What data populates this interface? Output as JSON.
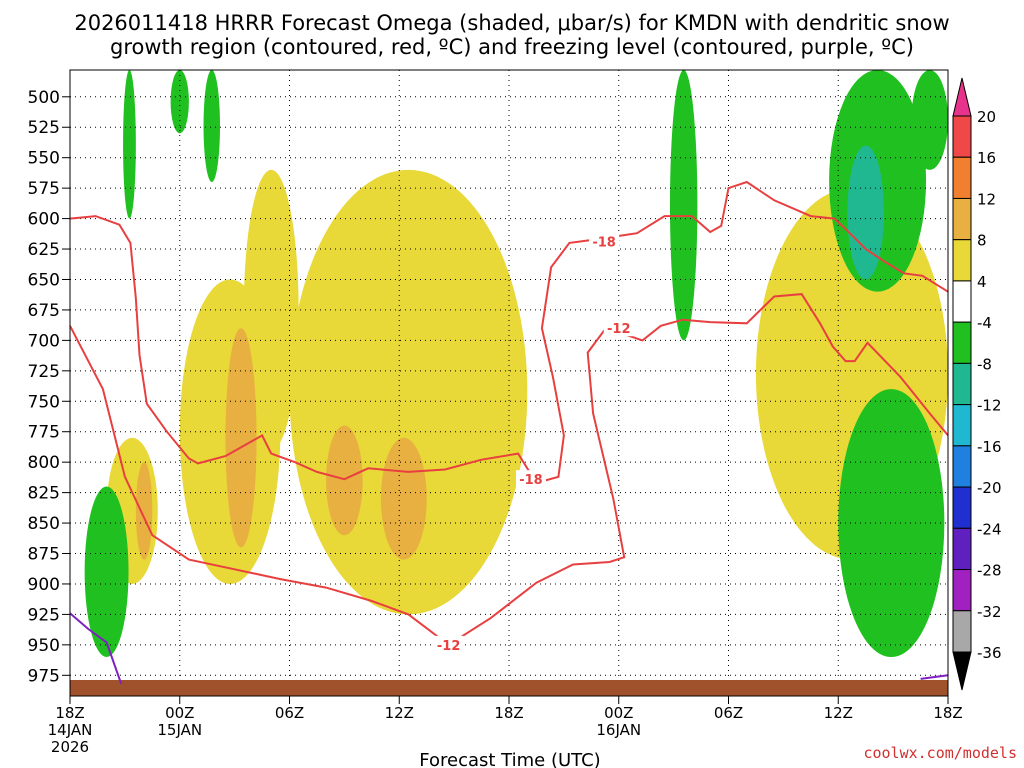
{
  "chart_data": {
    "type": "heatmap",
    "title_line1": "2026011418 HRRR Forecast Omega (shaded, μbar/s) for KMDN with dendritic snow",
    "title_line2": "growth region (contoured, red, ºC) and freezing level (contoured, purple, ºC)",
    "xlabel": "Forecast Time (UTC)",
    "credit": "coolwx.com/models",
    "y_ticks": [
      "500",
      "525",
      "550",
      "575",
      "600",
      "625",
      "650",
      "675",
      "700",
      "725",
      "750",
      "775",
      "800",
      "825",
      "850",
      "875",
      "900",
      "925",
      "950",
      "975"
    ],
    "y_range": [
      478,
      992
    ],
    "x_range_hours": [
      0,
      48
    ],
    "x_ticks": [
      {
        "hour": 0,
        "line1": "18Z",
        "line2": "14JAN",
        "line3": "2026"
      },
      {
        "hour": 6,
        "line1": "00Z",
        "line2": "15JAN",
        "line3": ""
      },
      {
        "hour": 12,
        "line1": "06Z",
        "line2": "",
        "line3": ""
      },
      {
        "hour": 18,
        "line1": "12Z",
        "line2": "",
        "line3": ""
      },
      {
        "hour": 24,
        "line1": "18Z",
        "line2": "",
        "line3": ""
      },
      {
        "hour": 30,
        "line1": "00Z",
        "line2": "16JAN",
        "line3": ""
      },
      {
        "hour": 36,
        "line1": "06Z",
        "line2": "",
        "line3": ""
      },
      {
        "hour": 42,
        "line1": "12Z",
        "line2": "",
        "line3": ""
      },
      {
        "hour": 48,
        "line1": "18Z",
        "line2": "",
        "line3": ""
      }
    ],
    "colorbar": {
      "labels": [
        "20",
        "16",
        "12",
        "8",
        "4",
        "-4",
        "-8",
        "-12",
        "-16",
        "-20",
        "-24",
        "-28",
        "-32",
        "-36"
      ],
      "colors": [
        "#e8338c",
        "#f04848",
        "#f08030",
        "#e8b040",
        "#e8d838",
        "#ffffff",
        "#20c020",
        "#20b890",
        "#20b8d0",
        "#2080e0",
        "#2030d0",
        "#6020c0",
        "#a020c0",
        "#a8a8a8",
        "#000000"
      ]
    },
    "contour_labels": [
      {
        "text": "-18",
        "hour": 29.2,
        "p": 619
      },
      {
        "text": "-18",
        "hour": 25.2,
        "p": 814
      },
      {
        "text": "-12",
        "hour": 30.0,
        "p": 690
      },
      {
        "text": "-12",
        "hour": 20.7,
        "p": 950
      }
    ],
    "shaded_regions": [
      {
        "level": "4",
        "hour_range": [
          2,
          4.8
        ],
        "p_range": [
          780,
          900
        ]
      },
      {
        "level": "4",
        "hour_range": [
          6,
          11.5
        ],
        "p_range": [
          650,
          900
        ]
      },
      {
        "level": "4",
        "hour_range": [
          9.5,
          12.5
        ],
        "p_range": [
          560,
          790
        ]
      },
      {
        "level": "4",
        "hour_range": [
          12,
          25
        ],
        "p_range": [
          560,
          925
        ]
      },
      {
        "level": "8",
        "hour_range": [
          8.5,
          10.2
        ],
        "p_range": [
          690,
          870
        ]
      },
      {
        "level": "8",
        "hour_range": [
          14,
          16
        ],
        "p_range": [
          770,
          860
        ]
      },
      {
        "level": "8",
        "hour_range": [
          17,
          19.5
        ],
        "p_range": [
          780,
          880
        ]
      },
      {
        "level": "8",
        "hour_range": [
          3.6,
          4.5
        ],
        "p_range": [
          800,
          880
        ]
      },
      {
        "level": "4",
        "hour_range": [
          37.5,
          48
        ],
        "p_range": [
          575,
          880
        ]
      },
      {
        "level": "-8",
        "hour_range": [
          0.8,
          3.2
        ],
        "p_range": [
          820,
          960
        ]
      },
      {
        "level": "-8",
        "hour_range": [
          2.9,
          3.6
        ],
        "p_range": [
          478,
          600
        ]
      },
      {
        "level": "-8",
        "hour_range": [
          5.5,
          6.5
        ],
        "p_range": [
          478,
          530
        ]
      },
      {
        "level": "-8",
        "hour_range": [
          7.3,
          8.2
        ],
        "p_range": [
          478,
          570
        ]
      },
      {
        "level": "-8",
        "hour_range": [
          32.8,
          34.3
        ],
        "p_range": [
          478,
          700
        ]
      },
      {
        "level": "-8",
        "hour_range": [
          41.5,
          46.8
        ],
        "p_range": [
          478,
          660
        ]
      },
      {
        "level": "-12",
        "hour_range": [
          42.5,
          44.5
        ],
        "p_range": [
          540,
          650
        ]
      },
      {
        "level": "-8",
        "hour_range": [
          42,
          47.8
        ],
        "p_range": [
          740,
          960
        ]
      },
      {
        "level": "-8",
        "hour_range": [
          46,
          48
        ],
        "p_range": [
          478,
          560
        ]
      }
    ],
    "dgz_contours": [
      {
        "value": -12,
        "points": [
          [
            0,
            688
          ],
          [
            1.8,
            740
          ],
          [
            3,
            812
          ],
          [
            4.5,
            860
          ],
          [
            6.5,
            880
          ],
          [
            9,
            888
          ],
          [
            11.5,
            896
          ],
          [
            14,
            903
          ],
          [
            16.5,
            914
          ],
          [
            18.5,
            925
          ],
          [
            20.7,
            950
          ],
          [
            23,
            928
          ],
          [
            25.5,
            899
          ],
          [
            27.5,
            884
          ],
          [
            29.5,
            882
          ],
          [
            30.3,
            878
          ],
          [
            29.7,
            830
          ],
          [
            28.6,
            760
          ],
          [
            28.3,
            710
          ],
          [
            29.3,
            690
          ],
          [
            31.3,
            700
          ],
          [
            32.3,
            688
          ],
          [
            33.5,
            683
          ],
          [
            35,
            685
          ],
          [
            37,
            686
          ],
          [
            38.5,
            664
          ],
          [
            40,
            662
          ],
          [
            41,
            686
          ],
          [
            41.7,
            705
          ],
          [
            42.4,
            717
          ],
          [
            42.9,
            717
          ],
          [
            43.6,
            702
          ],
          [
            45.4,
            730
          ],
          [
            47,
            760
          ],
          [
            48,
            778
          ]
        ]
      },
      {
        "value": -18,
        "points": [
          [
            0,
            600
          ],
          [
            1.4,
            598
          ],
          [
            2.7,
            605
          ],
          [
            3.3,
            620
          ],
          [
            3.6,
            665
          ],
          [
            3.8,
            712
          ],
          [
            4.2,
            752
          ],
          [
            5.3,
            775
          ],
          [
            6.5,
            797
          ],
          [
            7,
            801
          ],
          [
            8.5,
            795
          ],
          [
            10.5,
            778
          ],
          [
            11,
            793
          ],
          [
            12.3,
            800
          ],
          [
            13.5,
            808
          ],
          [
            15,
            814
          ],
          [
            16.3,
            805
          ],
          [
            18.5,
            808
          ],
          [
            20.5,
            806
          ],
          [
            22.5,
            798
          ],
          [
            24.5,
            793
          ],
          [
            25.5,
            817
          ],
          [
            26.7,
            812
          ],
          [
            27,
            778
          ],
          [
            26.4,
            730
          ],
          [
            25.8,
            690
          ],
          [
            26.3,
            640
          ],
          [
            27.3,
            620
          ],
          [
            28.3,
            618
          ],
          [
            31,
            612
          ],
          [
            32.5,
            598
          ],
          [
            34,
            598
          ],
          [
            35,
            611
          ],
          [
            35.6,
            606
          ],
          [
            36,
            575
          ],
          [
            37,
            570
          ],
          [
            38.5,
            585
          ],
          [
            40.5,
            598
          ],
          [
            41.8,
            600
          ],
          [
            42.5,
            610
          ],
          [
            43.5,
            625
          ],
          [
            44.5,
            635
          ],
          [
            45.6,
            645
          ],
          [
            46.6,
            647
          ],
          [
            48,
            660
          ]
        ]
      }
    ],
    "freezing_level": [
      {
        "value": 0,
        "points": [
          [
            0,
            924
          ],
          [
            1,
            937
          ],
          [
            2,
            948
          ],
          [
            2.8,
            982
          ]
        ]
      },
      {
        "value": 0,
        "points": [
          [
            46.5,
            978
          ],
          [
            48,
            975
          ]
        ]
      }
    ]
  }
}
